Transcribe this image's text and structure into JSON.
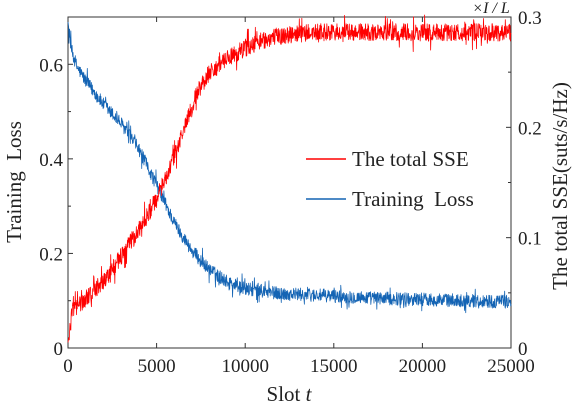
{
  "chart_data": {
    "type": "line",
    "title": "",
    "xlabel": "Slot t",
    "xlabel_parts": {
      "text": "Slot",
      "italic_var": "t"
    },
    "ylabel_left": "Training  Loss",
    "ylabel_right": "The total SSE(suts/s/Hz)",
    "right_axis_multiplier": "×I / L",
    "xlim": [
      0,
      25000
    ],
    "ylim_left": [
      0,
      0.7
    ],
    "ylim_right": [
      0,
      0.3
    ],
    "x_ticks": [
      0,
      5000,
      10000,
      15000,
      20000,
      25000
    ],
    "x_tick_labels": [
      "0",
      "5000",
      "10000",
      "15000",
      "20000",
      "25000"
    ],
    "y_left_ticks": [
      0,
      0.2,
      0.4,
      0.6
    ],
    "y_left_tick_labels": [
      "0",
      "0.2",
      "0.4",
      "0.6"
    ],
    "y_right_ticks": [
      0,
      0.1,
      0.2,
      0.3
    ],
    "y_right_tick_labels": [
      "0",
      "0.1",
      "0.2",
      "0.3"
    ],
    "grid": false,
    "legend_placement": "center-right",
    "series": [
      {
        "name": "The total SSE",
        "axis": "right",
        "color": "#ff0000",
        "noise": 0.008,
        "x": [
          0,
          250,
          1000,
          2000,
          3000,
          4000,
          5000,
          6000,
          7000,
          7500,
          8000,
          9000,
          10000,
          11000,
          12000,
          13000,
          14000,
          15000,
          17500,
          20000,
          22500,
          25000
        ],
        "y": [
          0.005,
          0.033,
          0.045,
          0.06,
          0.083,
          0.107,
          0.135,
          0.173,
          0.22,
          0.238,
          0.25,
          0.262,
          0.272,
          0.279,
          0.283,
          0.285,
          0.286,
          0.286,
          0.286,
          0.286,
          0.286,
          0.286
        ]
      },
      {
        "name": "Training  Loss",
        "axis": "left",
        "color": "#1464b4",
        "noise": 0.014,
        "x": [
          0,
          200,
          500,
          1000,
          2000,
          3000,
          4000,
          5000,
          6000,
          7000,
          8000,
          9000,
          10000,
          12000,
          15000,
          17500,
          20000,
          22500,
          25000
        ],
        "y": [
          0.69,
          0.63,
          0.595,
          0.565,
          0.515,
          0.475,
          0.42,
          0.345,
          0.265,
          0.205,
          0.165,
          0.14,
          0.125,
          0.115,
          0.11,
          0.105,
          0.103,
          0.1,
          0.098
        ]
      }
    ]
  }
}
